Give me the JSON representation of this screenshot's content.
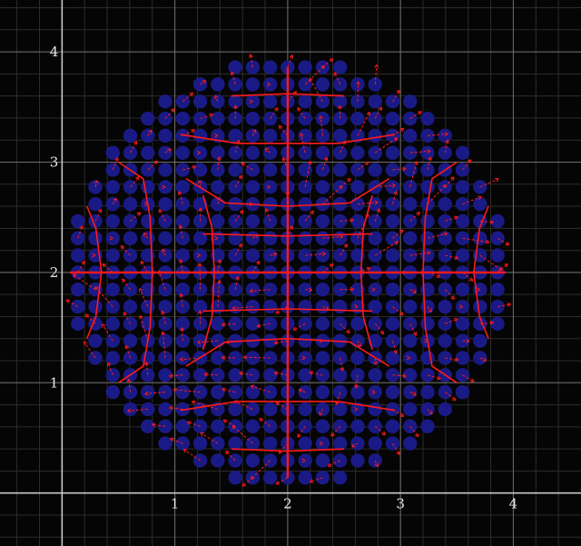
{
  "chart_data": {
    "type": "scatter",
    "title": "",
    "xlabel": "",
    "ylabel": "",
    "xlim": [
      -0.55,
      4.6
    ],
    "ylim": [
      -0.48,
      4.47
    ],
    "grid": true,
    "minor_grid_step": 0.2,
    "x_ticks": [
      1,
      2,
      3,
      4
    ],
    "y_ticks": [
      1,
      2,
      3,
      4
    ],
    "x_tick_labels": [
      "1",
      "2",
      "3",
      "4"
    ],
    "y_tick_labels": [
      "1",
      "2",
      "3",
      "4"
    ],
    "grid_nodes": {
      "center": [
        2.0,
        2.0
      ],
      "spacing": 0.155,
      "radius": 1.93,
      "marker_color": "#1a1a86",
      "marker_radius_units": 0.062
    },
    "vector_field": {
      "color": "#ff1a1a",
      "arrow_style": "dashed",
      "axes_of_symmetry": [
        "x=2",
        "y=2"
      ]
    },
    "colors": {
      "background": "#050505",
      "major_grid": "#6e6e6e",
      "minor_grid": "#2c2c2c",
      "axes": "#c8c8c8",
      "tick_label": "#e8e8e8",
      "nodes": "#1a1a86",
      "field_lines": "#ff1a1a"
    }
  }
}
